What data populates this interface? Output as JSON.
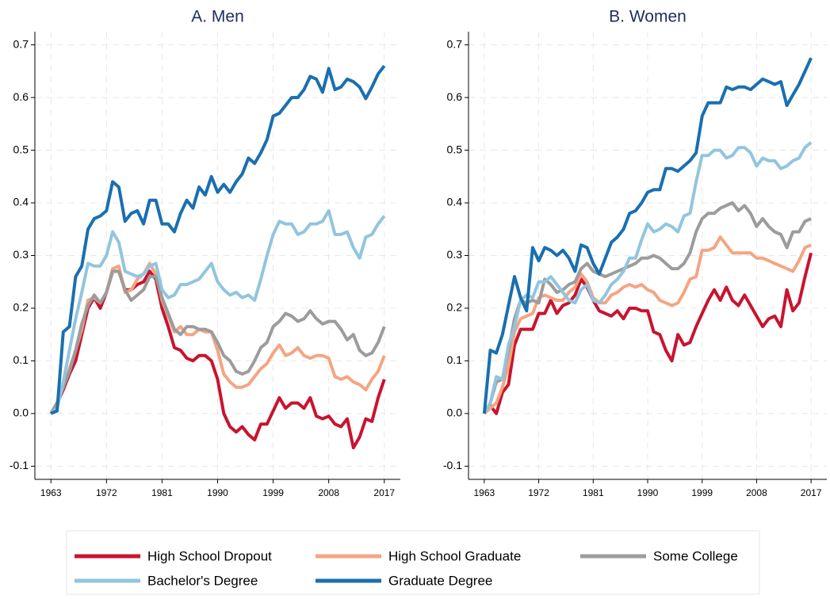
{
  "chart_data": [
    {
      "type": "line",
      "title": "A. Men",
      "x": [
        1963,
        1964,
        1965,
        1966,
        1967,
        1968,
        1969,
        1970,
        1971,
        1972,
        1973,
        1974,
        1975,
        1976,
        1977,
        1978,
        1979,
        1980,
        1981,
        1982,
        1983,
        1984,
        1985,
        1986,
        1987,
        1988,
        1989,
        1990,
        1991,
        1992,
        1993,
        1994,
        1995,
        1996,
        1997,
        1998,
        1999,
        2000,
        2001,
        2002,
        2003,
        2004,
        2005,
        2006,
        2007,
        2008,
        2009,
        2010,
        2011,
        2012,
        2013,
        2014,
        2015,
        2016,
        2017
      ],
      "xlim": [
        1960.4,
        2019.6
      ],
      "xticks": [
        1963,
        1972,
        1981,
        1990,
        1999,
        2008,
        2017
      ],
      "ylim": [
        -0.125,
        0.725
      ],
      "yticks": [
        -0.1,
        {
          "value": 0,
          "label": "0.0"
        },
        0.1,
        0.2,
        0.3,
        0.4,
        0.5,
        0.6,
        0.7
      ],
      "grid": true,
      "series": [
        {
          "name": "High School Dropout",
          "color": "#c8142f",
          "values": [
            0,
            0.02,
            0.045,
            0.075,
            0.1,
            0.15,
            0.2,
            0.22,
            0.2,
            0.23,
            0.27,
            0.27,
            0.235,
            0.235,
            0.245,
            0.25,
            0.27,
            0.255,
            0.2,
            0.165,
            0.125,
            0.12,
            0.105,
            0.1,
            0.11,
            0.11,
            0.1,
            0.065,
            0,
            -0.025,
            -0.035,
            -0.025,
            -0.04,
            -0.05,
            -0.02,
            -0.02,
            0.005,
            0.03,
            0.01,
            0.02,
            0.02,
            0.01,
            0.03,
            -0.005,
            -0.01,
            -0.005,
            -0.02,
            -0.025,
            -0.01,
            -0.065,
            -0.045,
            -0.01,
            -0.015,
            0.03,
            0.065
          ]
        },
        {
          "name": "High School Graduate",
          "color": "#f4a582",
          "values": [
            0,
            0.02,
            0.05,
            0.085,
            0.12,
            0.16,
            0.215,
            0.22,
            0.21,
            0.23,
            0.275,
            0.28,
            0.23,
            0.235,
            0.255,
            0.265,
            0.285,
            0.265,
            0.215,
            0.185,
            0.155,
            0.165,
            0.15,
            0.15,
            0.16,
            0.155,
            0.155,
            0.12,
            0.075,
            0.06,
            0.05,
            0.05,
            0.055,
            0.07,
            0.085,
            0.095,
            0.115,
            0.13,
            0.11,
            0.115,
            0.125,
            0.11,
            0.105,
            0.11,
            0.11,
            0.105,
            0.07,
            0.065,
            0.07,
            0.06,
            0.055,
            0.045,
            0.065,
            0.08,
            0.11
          ]
        },
        {
          "name": "Some College",
          "color": "#9c9c9c",
          "values": [
            0,
            0.02,
            0.05,
            0.08,
            0.12,
            0.17,
            0.205,
            0.225,
            0.21,
            0.23,
            0.27,
            0.27,
            0.235,
            0.215,
            0.225,
            0.235,
            0.26,
            0.26,
            0.22,
            0.19,
            0.16,
            0.15,
            0.165,
            0.165,
            0.16,
            0.16,
            0.155,
            0.135,
            0.11,
            0.1,
            0.08,
            0.075,
            0.08,
            0.1,
            0.125,
            0.135,
            0.165,
            0.175,
            0.19,
            0.185,
            0.175,
            0.18,
            0.195,
            0.18,
            0.17,
            0.175,
            0.175,
            0.16,
            0.14,
            0.15,
            0.12,
            0.11,
            0.115,
            0.135,
            0.165
          ]
        },
        {
          "name": "Bachelor's Degree",
          "color": "#92c5de",
          "values": [
            0,
            0.01,
            0.06,
            0.12,
            0.18,
            0.23,
            0.285,
            0.28,
            0.28,
            0.3,
            0.345,
            0.325,
            0.27,
            0.265,
            0.26,
            0.265,
            0.28,
            0.285,
            0.235,
            0.22,
            0.225,
            0.245,
            0.245,
            0.25,
            0.255,
            0.27,
            0.285,
            0.25,
            0.235,
            0.225,
            0.23,
            0.22,
            0.225,
            0.215,
            0.255,
            0.3,
            0.34,
            0.365,
            0.36,
            0.36,
            0.34,
            0.345,
            0.36,
            0.36,
            0.365,
            0.385,
            0.34,
            0.34,
            0.345,
            0.315,
            0.295,
            0.335,
            0.34,
            0.36,
            0.375
          ]
        },
        {
          "name": "Graduate Degree",
          "color": "#1a6faf",
          "values": [
            0,
            0.005,
            0.155,
            0.165,
            0.26,
            0.28,
            0.35,
            0.37,
            0.375,
            0.385,
            0.44,
            0.43,
            0.365,
            0.38,
            0.385,
            0.36,
            0.405,
            0.405,
            0.36,
            0.36,
            0.345,
            0.38,
            0.405,
            0.39,
            0.43,
            0.415,
            0.45,
            0.42,
            0.435,
            0.42,
            0.44,
            0.455,
            0.485,
            0.475,
            0.495,
            0.52,
            0.565,
            0.57,
            0.585,
            0.6,
            0.6,
            0.615,
            0.64,
            0.635,
            0.61,
            0.655,
            0.615,
            0.62,
            0.635,
            0.63,
            0.62,
            0.598,
            0.62,
            0.645,
            0.66
          ]
        }
      ]
    },
    {
      "type": "line",
      "title": "B. Women",
      "x": [
        1963,
        1964,
        1965,
        1966,
        1967,
        1968,
        1969,
        1970,
        1971,
        1972,
        1973,
        1974,
        1975,
        1976,
        1977,
        1978,
        1979,
        1980,
        1981,
        1982,
        1983,
        1984,
        1985,
        1986,
        1987,
        1988,
        1989,
        1990,
        1991,
        1992,
        1993,
        1994,
        1995,
        1996,
        1997,
        1998,
        1999,
        2000,
        2001,
        2002,
        2003,
        2004,
        2005,
        2006,
        2007,
        2008,
        2009,
        2010,
        2011,
        2012,
        2013,
        2014,
        2015,
        2016,
        2017
      ],
      "xlim": [
        1960.4,
        2019.6
      ],
      "xticks": [
        1963,
        1972,
        1981,
        1990,
        1999,
        2008,
        2017
      ],
      "ylim": [
        -0.125,
        0.725
      ],
      "yticks": [
        -0.1,
        {
          "value": 0,
          "label": "0.0"
        },
        0.1,
        0.2,
        0.3,
        0.4,
        0.5,
        0.6,
        0.7
      ],
      "grid": true,
      "series": [
        {
          "name": "High School Dropout",
          "color": "#c8142f",
          "values": [
            0,
            0.015,
            0,
            0.04,
            0.055,
            0.13,
            0.16,
            0.16,
            0.16,
            0.19,
            0.19,
            0.215,
            0.19,
            0.205,
            0.21,
            0.225,
            0.255,
            0.24,
            0.215,
            0.195,
            0.19,
            0.185,
            0.195,
            0.18,
            0.2,
            0.2,
            0.195,
            0.195,
            0.155,
            0.15,
            0.12,
            0.1,
            0.15,
            0.13,
            0.135,
            0.165,
            0.19,
            0.215,
            0.235,
            0.215,
            0.24,
            0.215,
            0.205,
            0.225,
            0.205,
            0.185,
            0.165,
            0.18,
            0.185,
            0.165,
            0.235,
            0.195,
            0.21,
            0.26,
            0.305
          ]
        },
        {
          "name": "High School Graduate",
          "color": "#f4a582",
          "values": [
            0,
            0.01,
            0.02,
            0.05,
            0.09,
            0.155,
            0.18,
            0.185,
            0.19,
            0.22,
            0.225,
            0.22,
            0.215,
            0.215,
            0.23,
            0.24,
            0.265,
            0.25,
            0.22,
            0.21,
            0.21,
            0.225,
            0.23,
            0.24,
            0.245,
            0.24,
            0.245,
            0.235,
            0.23,
            0.215,
            0.21,
            0.205,
            0.21,
            0.23,
            0.255,
            0.26,
            0.31,
            0.31,
            0.315,
            0.335,
            0.32,
            0.305,
            0.305,
            0.305,
            0.305,
            0.295,
            0.295,
            0.29,
            0.285,
            0.28,
            0.275,
            0.27,
            0.29,
            0.315,
            0.32
          ]
        },
        {
          "name": "Some College",
          "color": "#9c9c9c",
          "values": [
            0,
            0.02,
            0.06,
            0.065,
            0.12,
            0.18,
            0.215,
            0.21,
            0.215,
            0.21,
            0.255,
            0.245,
            0.23,
            0.235,
            0.245,
            0.25,
            0.275,
            0.285,
            0.27,
            0.265,
            0.26,
            0.265,
            0.27,
            0.275,
            0.28,
            0.285,
            0.295,
            0.295,
            0.3,
            0.295,
            0.285,
            0.275,
            0.275,
            0.285,
            0.305,
            0.345,
            0.37,
            0.38,
            0.38,
            0.39,
            0.395,
            0.4,
            0.385,
            0.395,
            0.38,
            0.355,
            0.37,
            0.355,
            0.345,
            0.34,
            0.315,
            0.345,
            0.345,
            0.365,
            0.37
          ]
        },
        {
          "name": "Bachelor's Degree",
          "color": "#92c5de",
          "values": [
            0,
            0.02,
            0.07,
            0.065,
            0.13,
            0.165,
            0.215,
            0.225,
            0.22,
            0.25,
            0.25,
            0.26,
            0.245,
            0.23,
            0.215,
            0.21,
            0.235,
            0.245,
            0.215,
            0.21,
            0.225,
            0.245,
            0.255,
            0.27,
            0.295,
            0.295,
            0.33,
            0.36,
            0.345,
            0.35,
            0.36,
            0.355,
            0.345,
            0.375,
            0.38,
            0.44,
            0.49,
            0.49,
            0.5,
            0.5,
            0.485,
            0.49,
            0.505,
            0.505,
            0.495,
            0.47,
            0.485,
            0.48,
            0.48,
            0.465,
            0.47,
            0.48,
            0.485,
            0.505,
            0.515
          ]
        },
        {
          "name": "Graduate Degree",
          "color": "#1a6faf",
          "values": [
            0,
            0.12,
            0.115,
            0.15,
            0.205,
            0.26,
            0.22,
            0.195,
            0.315,
            0.29,
            0.315,
            0.31,
            0.3,
            0.31,
            0.295,
            0.27,
            0.32,
            0.315,
            0.285,
            0.265,
            0.295,
            0.325,
            0.335,
            0.35,
            0.38,
            0.385,
            0.4,
            0.42,
            0.425,
            0.425,
            0.465,
            0.465,
            0.46,
            0.47,
            0.48,
            0.495,
            0.565,
            0.59,
            0.59,
            0.59,
            0.62,
            0.615,
            0.62,
            0.62,
            0.615,
            0.625,
            0.635,
            0.63,
            0.625,
            0.63,
            0.585,
            0.605,
            0.625,
            0.65,
            0.675
          ]
        }
      ]
    }
  ]
}
